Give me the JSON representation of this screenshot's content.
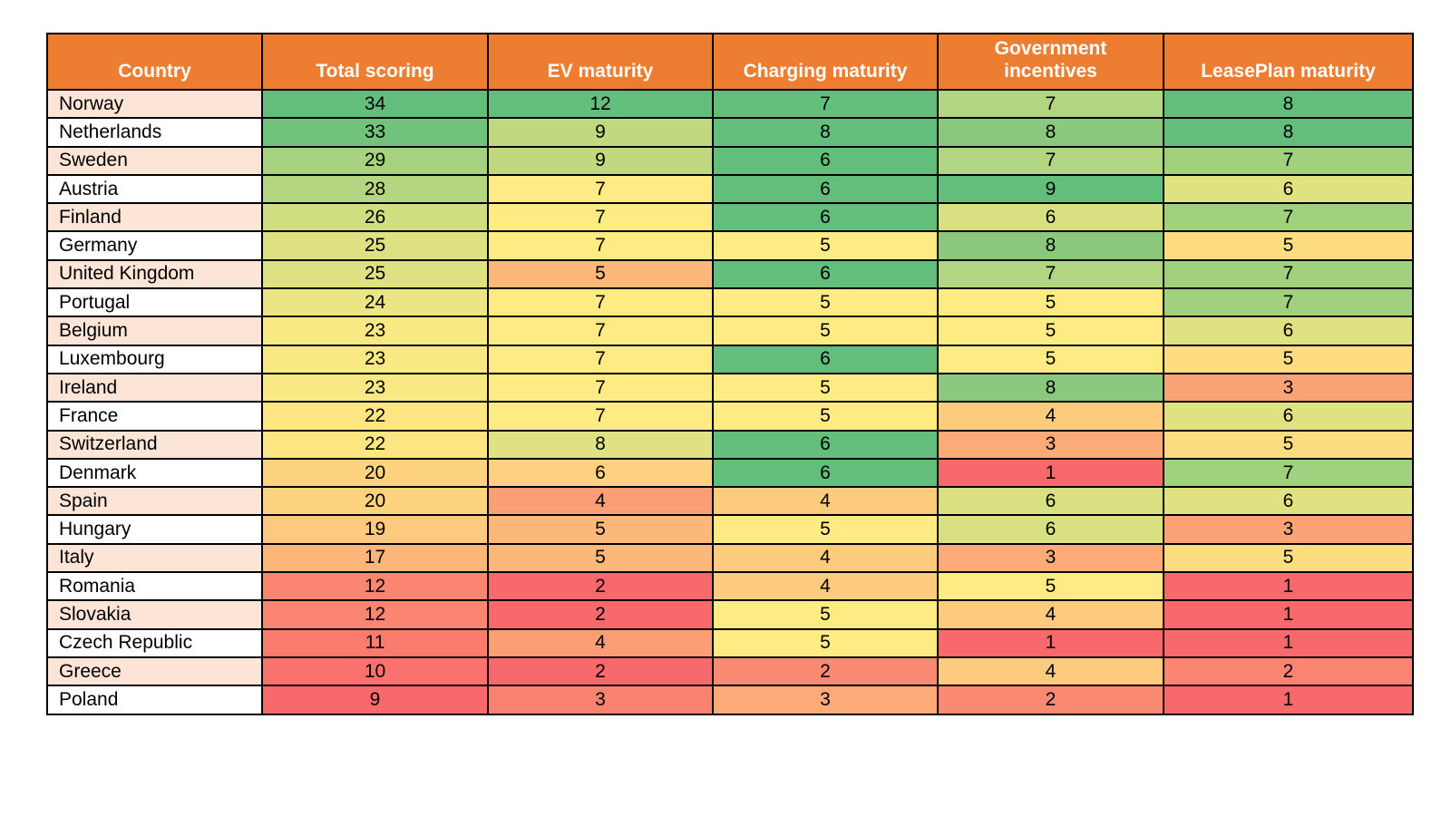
{
  "colors": {
    "header_bg": "#ED7D31",
    "header_text": "#FFFFFF",
    "country_row_odd_bg": "#FCE4D6",
    "country_row_even_bg": "#FFFFFF",
    "border": "#000000",
    "cell_text": "#000000"
  },
  "chart_data": {
    "type": "heatmap",
    "columns": [
      "Country",
      "Total scoring",
      "EV maturity",
      "Charging maturity",
      "Government incentives",
      "LeasePlan maturity"
    ],
    "color_scale": {
      "low": "#F8696B",
      "mid": "#FFEB84",
      "high": "#63BE7B"
    },
    "rows": [
      {
        "country": "Norway",
        "cells": [
          {
            "v": 34,
            "c": "#63BE7B"
          },
          {
            "v": 12,
            "c": "#63BE7B"
          },
          {
            "v": 7,
            "c": "#63BE7B"
          },
          {
            "v": 7,
            "c": "#B1D580"
          },
          {
            "v": 8,
            "c": "#63BE7B"
          }
        ]
      },
      {
        "country": "Netherlands",
        "cells": [
          {
            "v": 33,
            "c": "#71C27B"
          },
          {
            "v": 9,
            "c": "#C0D980"
          },
          {
            "v": 8,
            "c": "#63BE7B"
          },
          {
            "v": 8,
            "c": "#8AC97D"
          },
          {
            "v": 8,
            "c": "#63BE7B"
          }
        ]
      },
      {
        "country": "Sweden",
        "cells": [
          {
            "v": 29,
            "c": "#A7D27F"
          },
          {
            "v": 9,
            "c": "#C0D980"
          },
          {
            "v": 6,
            "c": "#63BE7B"
          },
          {
            "v": 7,
            "c": "#B1D580"
          },
          {
            "v": 7,
            "c": "#A1D07F"
          }
        ]
      },
      {
        "country": "Austria",
        "cells": [
          {
            "v": 28,
            "c": "#B4D680"
          },
          {
            "v": 7,
            "c": "#FFEB84"
          },
          {
            "v": 6,
            "c": "#63BE7B"
          },
          {
            "v": 9,
            "c": "#63BE7B"
          },
          {
            "v": 6,
            "c": "#E0E282"
          }
        ]
      },
      {
        "country": "Finland",
        "cells": [
          {
            "v": 26,
            "c": "#D0DD81"
          },
          {
            "v": 7,
            "c": "#FFEB84"
          },
          {
            "v": 6,
            "c": "#63BE7B"
          },
          {
            "v": 6,
            "c": "#D8E082"
          },
          {
            "v": 7,
            "c": "#A1D07F"
          }
        ]
      },
      {
        "country": "Germany",
        "cells": [
          {
            "v": 25,
            "c": "#DDE182"
          },
          {
            "v": 7,
            "c": "#FFEB84"
          },
          {
            "v": 5,
            "c": "#FFEB84"
          },
          {
            "v": 8,
            "c": "#8AC97D"
          },
          {
            "v": 5,
            "c": "#FEDD81"
          }
        ]
      },
      {
        "country": "United Kingdom",
        "cells": [
          {
            "v": 25,
            "c": "#DDE182"
          },
          {
            "v": 5,
            "c": "#FCB77A"
          },
          {
            "v": 6,
            "c": "#63BE7B"
          },
          {
            "v": 7,
            "c": "#B1D580"
          },
          {
            "v": 7,
            "c": "#A1D07F"
          }
        ]
      },
      {
        "country": "Portugal",
        "cells": [
          {
            "v": 24,
            "c": "#EBE583"
          },
          {
            "v": 7,
            "c": "#FFEB84"
          },
          {
            "v": 5,
            "c": "#FFEB84"
          },
          {
            "v": 5,
            "c": "#FFEB84"
          },
          {
            "v": 7,
            "c": "#A1D07F"
          }
        ]
      },
      {
        "country": "Belgium",
        "cells": [
          {
            "v": 23,
            "c": "#F8E984"
          },
          {
            "v": 7,
            "c": "#FFEB84"
          },
          {
            "v": 5,
            "c": "#FFEB84"
          },
          {
            "v": 5,
            "c": "#FFEB84"
          },
          {
            "v": 6,
            "c": "#E0E282"
          }
        ]
      },
      {
        "country": "Luxembourg",
        "cells": [
          {
            "v": 23,
            "c": "#F8E984"
          },
          {
            "v": 7,
            "c": "#FFEB84"
          },
          {
            "v": 6,
            "c": "#63BE7B"
          },
          {
            "v": 5,
            "c": "#FFEB84"
          },
          {
            "v": 5,
            "c": "#FEDD81"
          }
        ]
      },
      {
        "country": "Ireland",
        "cells": [
          {
            "v": 23,
            "c": "#F8E984"
          },
          {
            "v": 7,
            "c": "#FFEB84"
          },
          {
            "v": 5,
            "c": "#FFEB84"
          },
          {
            "v": 8,
            "c": "#8AC97D"
          },
          {
            "v": 3,
            "c": "#FBA376"
          }
        ]
      },
      {
        "country": "France",
        "cells": [
          {
            "v": 22,
            "c": "#FFE683"
          },
          {
            "v": 7,
            "c": "#FFEB84"
          },
          {
            "v": 5,
            "c": "#FFEB84"
          },
          {
            "v": 4,
            "c": "#FDCB7E"
          },
          {
            "v": 6,
            "c": "#E0E282"
          }
        ]
      },
      {
        "country": "Switzerland",
        "cells": [
          {
            "v": 22,
            "c": "#FFE683"
          },
          {
            "v": 8,
            "c": "#DFE282"
          },
          {
            "v": 6,
            "c": "#63BE7B"
          },
          {
            "v": 3,
            "c": "#FCAA78"
          },
          {
            "v": 5,
            "c": "#FEDD81"
          }
        ]
      },
      {
        "country": "Denmark",
        "cells": [
          {
            "v": 20,
            "c": "#FED37F"
          },
          {
            "v": 6,
            "c": "#FDD17F"
          },
          {
            "v": 6,
            "c": "#63BE7B"
          },
          {
            "v": 1,
            "c": "#F8696B"
          },
          {
            "v": 7,
            "c": "#A1D07F"
          }
        ]
      },
      {
        "country": "Spain",
        "cells": [
          {
            "v": 20,
            "c": "#FED37F"
          },
          {
            "v": 4,
            "c": "#FB9D75"
          },
          {
            "v": 4,
            "c": "#FDCB7E"
          },
          {
            "v": 6,
            "c": "#D8E082"
          },
          {
            "v": 6,
            "c": "#E0E282"
          }
        ]
      },
      {
        "country": "Hungary",
        "cells": [
          {
            "v": 19,
            "c": "#FDC97E"
          },
          {
            "v": 5,
            "c": "#FCB77A"
          },
          {
            "v": 5,
            "c": "#FFEB84"
          },
          {
            "v": 6,
            "c": "#D8E082"
          },
          {
            "v": 3,
            "c": "#FBA376"
          }
        ]
      },
      {
        "country": "Italy",
        "cells": [
          {
            "v": 17,
            "c": "#FCB67A"
          },
          {
            "v": 5,
            "c": "#FCB77A"
          },
          {
            "v": 4,
            "c": "#FDCB7E"
          },
          {
            "v": 3,
            "c": "#FCAA78"
          },
          {
            "v": 5,
            "c": "#FEDD81"
          }
        ]
      },
      {
        "country": "Romania",
        "cells": [
          {
            "v": 12,
            "c": "#FA8671"
          },
          {
            "v": 2,
            "c": "#F8696B"
          },
          {
            "v": 4,
            "c": "#FDCB7E"
          },
          {
            "v": 5,
            "c": "#FFEB84"
          },
          {
            "v": 1,
            "c": "#F8696B"
          }
        ]
      },
      {
        "country": "Slovakia",
        "cells": [
          {
            "v": 12,
            "c": "#FA8671"
          },
          {
            "v": 2,
            "c": "#F8696B"
          },
          {
            "v": 5,
            "c": "#FFEB84"
          },
          {
            "v": 4,
            "c": "#FDCB7E"
          },
          {
            "v": 1,
            "c": "#F8696B"
          }
        ]
      },
      {
        "country": "Czech Republic",
        "cells": [
          {
            "v": 11,
            "c": "#F97C6F"
          },
          {
            "v": 4,
            "c": "#FB9D75"
          },
          {
            "v": 5,
            "c": "#FFEB84"
          },
          {
            "v": 1,
            "c": "#F8696B"
          },
          {
            "v": 1,
            "c": "#F8696B"
          }
        ]
      },
      {
        "country": "Greece",
        "cells": [
          {
            "v": 10,
            "c": "#F9726D"
          },
          {
            "v": 2,
            "c": "#F8696B"
          },
          {
            "v": 2,
            "c": "#FA8A71"
          },
          {
            "v": 4,
            "c": "#FDCB7E"
          },
          {
            "v": 2,
            "c": "#FA8671"
          }
        ]
      },
      {
        "country": "Poland",
        "cells": [
          {
            "v": 9,
            "c": "#F8696B"
          },
          {
            "v": 3,
            "c": "#F98370"
          },
          {
            "v": 3,
            "c": "#FCAA78"
          },
          {
            "v": 2,
            "c": "#FA8A71"
          },
          {
            "v": 1,
            "c": "#F8696B"
          }
        ]
      }
    ]
  }
}
